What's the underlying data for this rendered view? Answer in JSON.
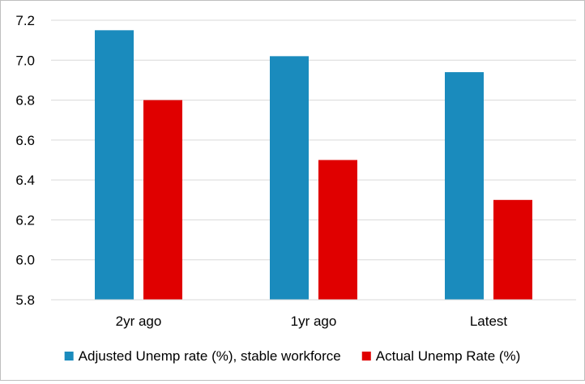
{
  "chart_data": {
    "type": "bar",
    "categories": [
      "2yr ago",
      "1yr ago",
      "Latest"
    ],
    "series": [
      {
        "name": "Adjusted Unemp rate (%), stable workforce",
        "values": [
          7.15,
          7.02,
          6.94
        ],
        "color": "#1a8bbd"
      },
      {
        "name": "Actual Unemp Rate (%)",
        "values": [
          6.8,
          6.5,
          6.3
        ],
        "color": "#e00000"
      }
    ],
    "yticks": [
      "5.8",
      "6.0",
      "6.2",
      "6.4",
      "6.6",
      "6.8",
      "7.0",
      "7.2"
    ],
    "ylim": [
      5.8,
      7.2
    ],
    "title": "",
    "xlabel": "",
    "ylabel": "",
    "grid": "horizontal",
    "legend_position": "bottom"
  }
}
